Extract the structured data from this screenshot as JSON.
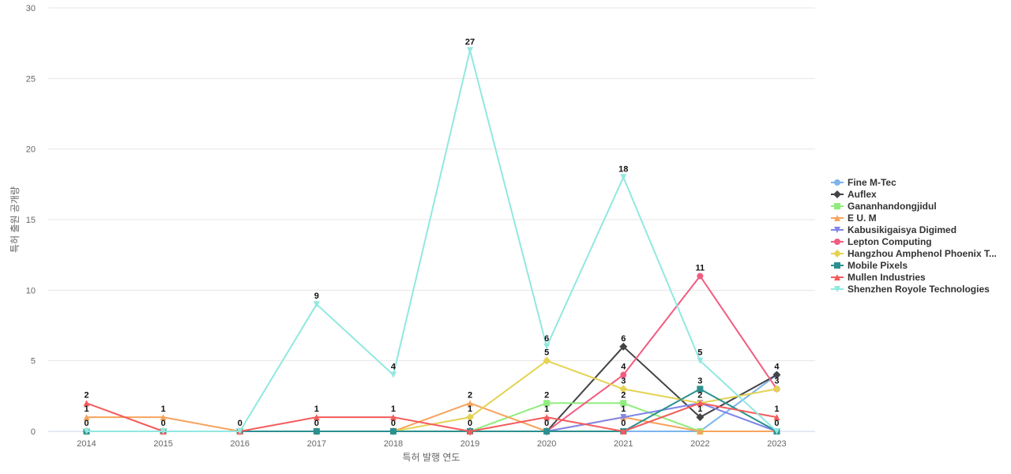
{
  "chart_data": {
    "type": "line",
    "title": "",
    "xlabel": "특허 발행 연도",
    "ylabel": "특허 출원 공개량",
    "ylim": [
      0,
      30
    ],
    "yticks": [
      0,
      5,
      10,
      15,
      20,
      25,
      30
    ],
    "grid": true,
    "legend_position": "right",
    "categories": [
      "2014",
      "2015",
      "2016",
      "2017",
      "2018",
      "2019",
      "2020",
      "2021",
      "2022",
      "2023"
    ],
    "series": [
      {
        "name": "Fine M-Tec",
        "legend_label": "Fine M-Tec",
        "color": "#7cb5ec",
        "marker": "circle",
        "values": [
          0,
          0,
          0,
          0,
          0,
          0,
          0,
          0,
          0,
          4
        ],
        "labeled": []
      },
      {
        "name": "Auflex",
        "legend_label": "Auflex",
        "color": "#434348",
        "marker": "diamond",
        "values": [
          0,
          0,
          0,
          0,
          0,
          0,
          0,
          6,
          1,
          4
        ],
        "labeled": [
          7,
          8,
          9
        ]
      },
      {
        "name": "Gananhandongjidul",
        "legend_label": "Gananhandongjidul",
        "color": "#90ed7d",
        "marker": "square",
        "values": [
          0,
          0,
          0,
          0,
          0,
          0,
          2,
          2,
          0,
          0
        ],
        "labeled": [
          6,
          7
        ]
      },
      {
        "name": "E U. M",
        "legend_label": "E U. M",
        "color": "#f7a35c",
        "marker": "triangle",
        "values": [
          1,
          1,
          0,
          0,
          0,
          2,
          0,
          1,
          0,
          0
        ],
        "labeled": [
          0,
          1,
          5,
          7
        ]
      },
      {
        "name": "Kabusikigaisya Digimed",
        "legend_label": "Kabusikigaisya Digimed",
        "color": "#8085e9",
        "marker": "triangle-down",
        "values": [
          0,
          0,
          0,
          0,
          0,
          0,
          0,
          1,
          2,
          0
        ],
        "labeled": [
          8
        ]
      },
      {
        "name": "Lepton Computing",
        "legend_label": "Lepton Computing",
        "color": "#f15c80",
        "marker": "circle",
        "values": [
          0,
          0,
          0,
          0,
          0,
          0,
          0,
          4,
          11,
          3
        ],
        "labeled": [
          7,
          8
        ]
      },
      {
        "name": "Hangzhou Amphenol Phoenix Telecom Parts",
        "legend_label": "Hangzhou Amphenol Phoenix T...",
        "color": "#e4d354",
        "marker": "diamond",
        "values": [
          0,
          0,
          0,
          0,
          0,
          1,
          5,
          3,
          2,
          3
        ],
        "labeled": [
          5,
          6,
          7,
          9
        ]
      },
      {
        "name": "Mobile Pixels",
        "legend_label": "Mobile Pixels",
        "color": "#2b908f",
        "marker": "square",
        "values": [
          0,
          0,
          0,
          0,
          0,
          0,
          0,
          0,
          3,
          0
        ],
        "labeled": [
          0,
          1,
          3,
          4,
          5,
          6,
          7,
          8,
          9
        ]
      },
      {
        "name": "Mullen Industries",
        "legend_label": "Mullen Industries",
        "color": "#f45b5b",
        "marker": "triangle",
        "values": [
          2,
          0,
          0,
          1,
          1,
          0,
          1,
          0,
          2,
          1
        ],
        "labeled": [
          0,
          3,
          4,
          6,
          9
        ]
      },
      {
        "name": "Shenzhen Royole Technologies",
        "legend_label": "Shenzhen Royole Technologies",
        "color": "#91e8e1",
        "marker": "triangle-down",
        "values": [
          0,
          0,
          0,
          9,
          4,
          27,
          6,
          18,
          5,
          0
        ],
        "labeled": [
          2,
          3,
          4,
          5,
          6,
          7,
          8
        ]
      }
    ]
  }
}
